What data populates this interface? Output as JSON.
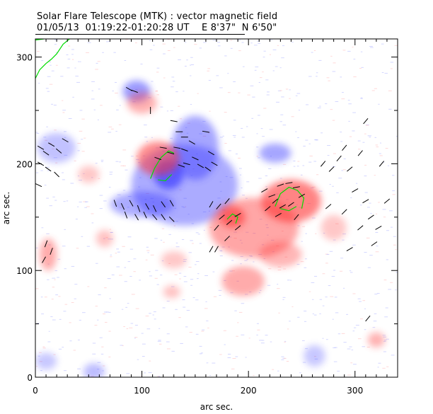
{
  "chart_data": {
    "type": "heatmap",
    "title": "Solar Flare Telescope (MTK) : vector magnetic field",
    "subtitle": "01/05/13  01:19:22-01:20:28 UT    E 8'37\"  N 6'50\"",
    "xlabel": "arc sec.",
    "ylabel": "arc sec.",
    "xlim": [
      0,
      340
    ],
    "ylim": [
      0,
      317
    ],
    "xticks": [
      "0",
      "100",
      "200",
      "300"
    ],
    "yticks": [
      "0",
      "100",
      "200",
      "300"
    ],
    "colors": {
      "positive": "#ff3030",
      "negative": "#3030ff",
      "vectors": "#000000",
      "contour": "#00dd00"
    },
    "regions": [
      {
        "polarity": "negative",
        "x": 140,
        "y": 180,
        "rx": 50,
        "ry": 38,
        "strength": 0.55
      },
      {
        "polarity": "negative",
        "x": 150,
        "y": 215,
        "rx": 22,
        "ry": 30,
        "strength": 0.6
      },
      {
        "polarity": "negative",
        "x": 125,
        "y": 190,
        "rx": 14,
        "ry": 14,
        "strength": 1.0
      },
      {
        "polarity": "negative",
        "x": 95,
        "y": 268,
        "rx": 13,
        "ry": 10,
        "strength": 0.7
      },
      {
        "polarity": "negative",
        "x": 225,
        "y": 210,
        "rx": 15,
        "ry": 9,
        "strength": 0.6
      },
      {
        "polarity": "negative",
        "x": 20,
        "y": 215,
        "rx": 18,
        "ry": 14,
        "strength": 0.35
      },
      {
        "polarity": "negative",
        "x": 100,
        "y": 162,
        "rx": 30,
        "ry": 12,
        "strength": 0.55
      },
      {
        "polarity": "negative",
        "x": 55,
        "y": 5,
        "rx": 10,
        "ry": 8,
        "strength": 0.4
      },
      {
        "polarity": "negative",
        "x": 10,
        "y": 15,
        "rx": 10,
        "ry": 8,
        "strength": 0.3
      },
      {
        "polarity": "negative",
        "x": 262,
        "y": 20,
        "rx": 10,
        "ry": 10,
        "strength": 0.3
      },
      {
        "polarity": "positive",
        "x": 115,
        "y": 205,
        "rx": 20,
        "ry": 16,
        "strength": 0.8
      },
      {
        "polarity": "positive",
        "x": 100,
        "y": 257,
        "rx": 14,
        "ry": 10,
        "strength": 0.5
      },
      {
        "polarity": "positive",
        "x": 205,
        "y": 140,
        "rx": 42,
        "ry": 28,
        "strength": 0.6
      },
      {
        "polarity": "positive",
        "x": 240,
        "y": 165,
        "rx": 28,
        "ry": 20,
        "strength": 0.9
      },
      {
        "polarity": "positive",
        "x": 185,
        "y": 150,
        "rx": 12,
        "ry": 10,
        "strength": 0.9
      },
      {
        "polarity": "positive",
        "x": 195,
        "y": 90,
        "rx": 20,
        "ry": 14,
        "strength": 0.55
      },
      {
        "polarity": "positive",
        "x": 230,
        "y": 115,
        "rx": 20,
        "ry": 12,
        "strength": 0.45
      },
      {
        "polarity": "positive",
        "x": 12,
        "y": 115,
        "rx": 8,
        "ry": 15,
        "strength": 0.55
      },
      {
        "polarity": "positive",
        "x": 65,
        "y": 130,
        "rx": 8,
        "ry": 8,
        "strength": 0.35
      },
      {
        "polarity": "positive",
        "x": 130,
        "y": 110,
        "rx": 12,
        "ry": 8,
        "strength": 0.3
      },
      {
        "polarity": "positive",
        "x": 320,
        "y": 35,
        "rx": 8,
        "ry": 7,
        "strength": 0.5
      },
      {
        "polarity": "positive",
        "x": 50,
        "y": 190,
        "rx": 10,
        "ry": 8,
        "strength": 0.3
      },
      {
        "polarity": "positive",
        "x": 280,
        "y": 140,
        "rx": 12,
        "ry": 12,
        "strength": 0.3
      },
      {
        "polarity": "positive",
        "x": 128,
        "y": 80,
        "rx": 8,
        "ry": 6,
        "strength": 0.35
      }
    ],
    "vectors": [
      [
        88,
        270,
        60
      ],
      [
        93,
        268,
        70
      ],
      [
        108,
        250,
        0
      ],
      [
        5,
        215,
        60
      ],
      [
        10,
        210,
        55
      ],
      [
        15,
        218,
        60
      ],
      [
        22,
        212,
        50
      ],
      [
        28,
        222,
        60
      ],
      [
        5,
        200,
        60
      ],
      [
        12,
        195,
        55
      ],
      [
        3,
        180,
        65
      ],
      [
        20,
        190,
        45
      ],
      [
        75,
        163,
        20
      ],
      [
        82,
        160,
        25
      ],
      [
        90,
        163,
        30
      ],
      [
        97,
        158,
        20
      ],
      [
        105,
        160,
        30
      ],
      [
        112,
        158,
        25
      ],
      [
        120,
        162,
        35
      ],
      [
        128,
        163,
        30
      ],
      [
        95,
        150,
        30
      ],
      [
        103,
        152,
        25
      ],
      [
        112,
        150,
        40
      ],
      [
        120,
        150,
        35
      ],
      [
        128,
        148,
        45
      ],
      [
        85,
        152,
        20
      ],
      [
        115,
        205,
        70
      ],
      [
        120,
        215,
        80
      ],
      [
        127,
        210,
        75
      ],
      [
        133,
        215,
        80
      ],
      [
        140,
        213,
        70
      ],
      [
        147,
        220,
        60
      ],
      [
        150,
        205,
        65
      ],
      [
        155,
        198,
        60
      ],
      [
        162,
        195,
        55
      ],
      [
        168,
        200,
        60
      ],
      [
        137,
        198,
        70
      ],
      [
        142,
        200,
        75
      ],
      [
        135,
        230,
        90
      ],
      [
        140,
        225,
        90
      ],
      [
        160,
        230,
        80
      ],
      [
        130,
        240,
        80
      ],
      [
        165,
        210,
        60
      ],
      [
        165,
        162,
        -30
      ],
      [
        172,
        160,
        -40
      ],
      [
        180,
        165,
        -40
      ],
      [
        175,
        150,
        -50
      ],
      [
        182,
        145,
        -50
      ],
      [
        190,
        152,
        -60
      ],
      [
        170,
        140,
        -40
      ],
      [
        190,
        140,
        -50
      ],
      [
        180,
        130,
        -45
      ],
      [
        170,
        120,
        -30
      ],
      [
        215,
        175,
        -60
      ],
      [
        222,
        170,
        -70
      ],
      [
        230,
        180,
        -70
      ],
      [
        238,
        182,
        -80
      ],
      [
        245,
        178,
        -80
      ],
      [
        250,
        170,
        -60
      ],
      [
        225,
        165,
        -50
      ],
      [
        232,
        160,
        -60
      ],
      [
        240,
        162,
        -55
      ],
      [
        218,
        158,
        -50
      ],
      [
        228,
        152,
        -60
      ],
      [
        245,
        150,
        -40
      ],
      [
        270,
        200,
        -40
      ],
      [
        278,
        195,
        -45
      ],
      [
        285,
        205,
        -40
      ],
      [
        295,
        195,
        -50
      ],
      [
        305,
        210,
        -40
      ],
      [
        300,
        175,
        -60
      ],
      [
        310,
        165,
        -60
      ],
      [
        315,
        150,
        -55
      ],
      [
        322,
        140,
        -60
      ],
      [
        305,
        140,
        -50
      ],
      [
        290,
        155,
        -45
      ],
      [
        275,
        160,
        -50
      ],
      [
        295,
        120,
        -60
      ],
      [
        318,
        125,
        -55
      ],
      [
        330,
        165,
        -50
      ],
      [
        325,
        200,
        -40
      ],
      [
        310,
        240,
        -40
      ],
      [
        290,
        215,
        -40
      ],
      [
        10,
        125,
        -20
      ],
      [
        15,
        118,
        -20
      ],
      [
        8,
        110,
        -30
      ],
      [
        165,
        120,
        -30
      ],
      [
        312,
        55,
        -40
      ]
    ],
    "contours": [
      [
        [
          0,
          280
        ],
        [
          4,
          288
        ],
        [
          10,
          294
        ],
        [
          15,
          298
        ],
        [
          20,
          303
        ],
        [
          26,
          312
        ],
        [
          32,
          317
        ]
      ],
      [
        [
          0,
          316
        ],
        [
          8,
          317
        ]
      ],
      [
        [
          108,
          186
        ],
        [
          112,
          196
        ],
        [
          118,
          206
        ],
        [
          125,
          212
        ],
        [
          130,
          210
        ]
      ],
      [
        [
          115,
          185
        ],
        [
          122,
          184
        ],
        [
          128,
          190
        ]
      ],
      [
        [
          180,
          148
        ],
        [
          185,
          153
        ],
        [
          190,
          150
        ],
        [
          188,
          144
        ]
      ],
      [
        [
          225,
          160
        ],
        [
          230,
          172
        ],
        [
          238,
          178
        ],
        [
          246,
          175
        ],
        [
          252,
          168
        ],
        [
          250,
          158
        ]
      ],
      [
        [
          230,
          158
        ],
        [
          238,
          156
        ],
        [
          245,
          160
        ]
      ]
    ]
  }
}
